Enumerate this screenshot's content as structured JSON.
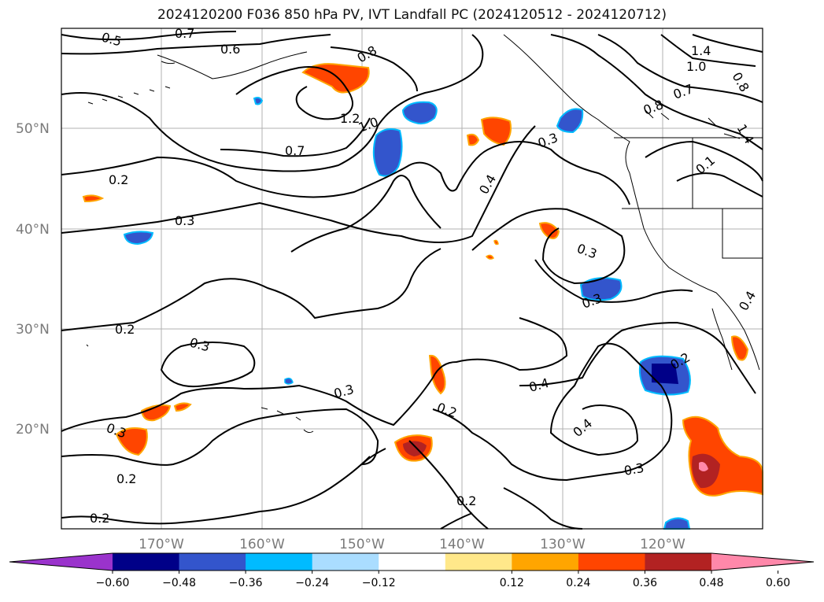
{
  "title": "2024120200 F036 850 hPa PV, IVT Landfall PC (2024120512 - 2024120712)",
  "lat_labels": [
    "50°N",
    "40°N",
    "30°N",
    "20°N"
  ],
  "lon_labels": [
    "170°W",
    "160°W",
    "150°W",
    "140°W",
    "130°W",
    "120°W"
  ],
  "contour_labels": [
    "0.5",
    "0.7",
    "0.6",
    "0.8",
    "1.4",
    "1.0",
    "0.8",
    "0.7",
    "1.2",
    "1.0",
    "0.7",
    "0.8",
    "0.3",
    "1.4",
    "0.1",
    "0.2",
    "0.3",
    "0.4",
    "0.3",
    "0.3",
    "0.2",
    "0.3",
    "0.3",
    "0.2",
    "0.4",
    "0.2",
    "0.3",
    "0.4",
    "0.3",
    "0.2",
    "0.2",
    "0.2",
    "0.4"
  ],
  "colorbar": {
    "ticks": [
      "−0.60",
      "−0.48",
      "−0.36",
      "−0.24",
      "−0.12",
      "0.12",
      "0.24",
      "0.36",
      "0.48",
      "0.60"
    ],
    "colors": [
      "#9a33cc",
      "#000088",
      "#3355cc",
      "#00bbff",
      "#aaddff",
      "#ffffff",
      "#ffe88a",
      "#ffa500",
      "#ff4500",
      "#b22222",
      "#ff88aa"
    ]
  }
}
